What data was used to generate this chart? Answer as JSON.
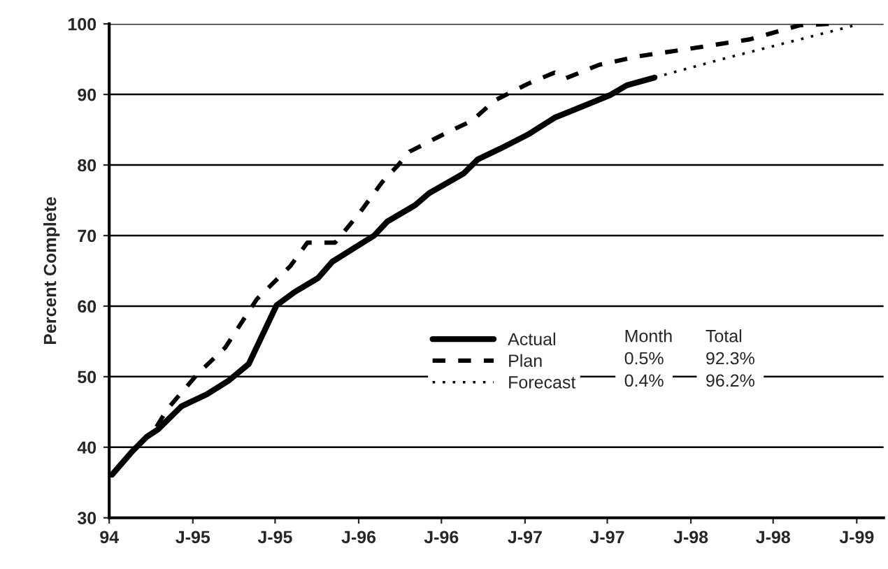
{
  "chart_data": {
    "type": "line",
    "ylabel": "Percent Complete",
    "xlim": [
      "1994-07-01",
      "1999-03-01"
    ],
    "ylim": [
      30,
      100
    ],
    "xticks": [
      {
        "value": "1994-07",
        "label": "94"
      },
      {
        "value": "1995-01",
        "label": "J-95"
      },
      {
        "value": "1995-07",
        "label": "J-95"
      },
      {
        "value": "1996-01",
        "label": "J-96"
      },
      {
        "value": "1996-07",
        "label": "J-96"
      },
      {
        "value": "1997-01",
        "label": "J-97"
      },
      {
        "value": "1997-07",
        "label": "J-97"
      },
      {
        "value": "1998-01",
        "label": "J-98"
      },
      {
        "value": "1998-07",
        "label": "J-98"
      },
      {
        "value": "1999-01",
        "label": "J-99"
      }
    ],
    "yticks": [
      30,
      40,
      50,
      60,
      70,
      80,
      90,
      100
    ],
    "grid": "y",
    "legend": "center",
    "marker": "none",
    "series": [
      {
        "name": "Actual",
        "color": "#000000",
        "line_style": "solid",
        "x": [
          "1994-07-07",
          "1994-08-22",
          "1994-09-22",
          "1994-10-16",
          "1994-12-07",
          "1995-02-01",
          "1995-03-22",
          "1995-05-04",
          "1995-07-04",
          "1995-08-13",
          "1995-10-04",
          "1995-11-04",
          "1996-02-04",
          "1996-03-04",
          "1996-05-04",
          "1996-06-04",
          "1996-08-19",
          "1996-09-19",
          "1996-11-07",
          "1997-01-07",
          "1997-03-07",
          "1997-05-07",
          "1997-07-07",
          "1997-08-13",
          "1997-10-13"
        ],
        "values": [
          36.1,
          39.5,
          41.5,
          42.5,
          45.8,
          47.5,
          49.5,
          51.8,
          60.1,
          62,
          64,
          66.3,
          70,
          72,
          74.3,
          76,
          78.8,
          80.8,
          82.3,
          84.3,
          86.7,
          88.3,
          89.9,
          91.3,
          92.4
        ]
      },
      {
        "name": "Plan",
        "color": "#000000",
        "line_style": "dashed",
        "x": [
          "1994-10-13",
          "1994-11-07",
          "1995-01-13",
          "1995-03-13",
          "1995-05-22",
          "1995-08-04",
          "1995-09-10",
          "1995-11-10",
          "1996-01-04",
          "1996-02-22",
          "1996-03-28",
          "1996-04-22",
          "1996-07-04",
          "1996-09-07",
          "1996-10-25",
          "1997-01-07",
          "1997-03-07",
          "1997-04-01",
          "1997-06-13",
          "1997-09-07",
          "1998-01-10",
          "1998-05-10",
          "1998-08-28",
          "1998-11-01"
        ],
        "values": [
          42.9,
          45.5,
          50.5,
          54.1,
          61,
          65.7,
          69,
          69,
          73.3,
          77.6,
          80,
          81.9,
          84.3,
          86.3,
          89.1,
          91.5,
          93.1,
          92.3,
          94.2,
          95.4,
          96.6,
          97.8,
          99.8,
          100
        ]
      },
      {
        "name": "Forecast",
        "color": "#000000",
        "line_style": "dotted",
        "x": [
          "1997-10-13",
          "1998-03-10",
          "1998-08-04",
          "1998-12-28"
        ],
        "values": [
          92.4,
          95,
          97.4,
          99.8
        ]
      }
    ],
    "annotations": [
      "Month",
      "Total",
      "0.5%",
      "92.3%",
      "0.4%",
      "96.2%"
    ]
  }
}
